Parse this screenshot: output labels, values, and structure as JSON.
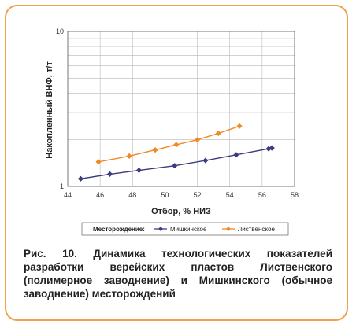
{
  "chart_data": {
    "type": "line",
    "xlabel": "Отбор, % НИЗ",
    "ylabel": "Накопленный ВНФ, т/т",
    "xlim": [
      44,
      58
    ],
    "ylim": [
      1,
      10
    ],
    "yscale": "log",
    "x_ticks": [
      "44",
      "46",
      "48",
      "50",
      "52",
      "54",
      "56",
      "58"
    ],
    "y_ticks": [
      "1",
      "10"
    ],
    "grid": true,
    "legend_title": "Месторождение:",
    "legend_position": "bottom",
    "series": [
      {
        "name": "Мишкинское",
        "color": "#3b3b7e",
        "marker": "diamond",
        "x": [
          44.8,
          46.6,
          48.4,
          50.6,
          52.5,
          54.4,
          56.4,
          56.6
        ],
        "y": [
          1.12,
          1.2,
          1.27,
          1.36,
          1.47,
          1.6,
          1.75,
          1.77
        ]
      },
      {
        "name": "Лиственское",
        "color": "#f08a24",
        "marker": "diamond",
        "x": [
          45.9,
          47.8,
          49.4,
          50.7,
          52.0,
          53.3,
          54.6
        ],
        "y": [
          1.44,
          1.57,
          1.72,
          1.86,
          2.0,
          2.2,
          2.45
        ]
      }
    ]
  },
  "caption": "Рис. 10. Динамика технологических показателей разработки верейских пластов Лиственского (полимерное заводнение) и Мишкинского (обычное заводнение) месторождений"
}
